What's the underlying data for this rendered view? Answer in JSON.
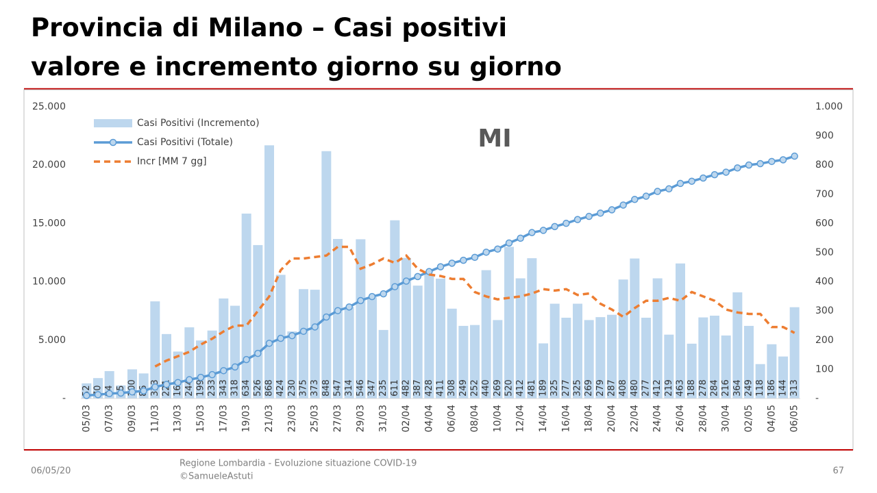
{
  "title": "Provincia di Milano – Casi positivi",
  "subtitle": "valore e incremento giorno su giorno",
  "footer": {
    "date": "06/05/20",
    "source": "Regione Lombardia - Evoluzione situazione COVID-19",
    "author": "©SamueleAstuti",
    "page": "67"
  },
  "chart_data": {
    "type": "combo",
    "annotation": "MI",
    "categories": [
      "05/03",
      null,
      "07/03",
      null,
      "09/03",
      null,
      "11/03",
      null,
      "13/03",
      null,
      "15/03",
      null,
      "17/03",
      null,
      "19/03",
      null,
      "21/03",
      null,
      "23/03",
      null,
      "25/03",
      null,
      "27/03",
      null,
      "29/03",
      null,
      "31/03",
      null,
      "02/04",
      null,
      "04/04",
      null,
      "06/04",
      null,
      "08/04",
      null,
      "10/04",
      null,
      "12/04",
      null,
      "14/04",
      null,
      "16/04",
      null,
      "18/04",
      null,
      "20/04",
      null,
      "22/04",
      null,
      "24/04",
      null,
      "26/04",
      null,
      "28/04",
      null,
      "30/04",
      null,
      "02/05",
      null,
      "04/05",
      null,
      "06/05"
    ],
    "series": [
      {
        "name": "Casi Positivi (Incremento)",
        "type": "bar",
        "axis": "y2",
        "color": "#bdd7ee",
        "values": [
          52,
          70,
          94,
          45,
          100,
          86,
          333,
          221,
          161,
          244,
          199,
          233,
          343,
          318,
          634,
          526,
          868,
          424,
          230,
          375,
          373,
          848,
          547,
          314,
          546,
          347,
          235,
          611,
          482,
          387,
          428,
          411,
          308,
          249,
          252,
          440,
          269,
          520,
          412,
          481,
          189,
          325,
          277,
          325,
          269,
          279,
          287,
          408,
          480,
          277,
          412,
          219,
          463,
          188,
          278,
          284,
          216,
          364,
          249,
          118,
          186,
          144,
          313
        ]
      },
      {
        "name": "Casi Positivi (Totale)",
        "type": "line",
        "axis": "y",
        "color": "#5b9bd5",
        "marker": true,
        "values": [
          258,
          328,
          422,
          467,
          567,
          653,
          986,
          1207,
          1368,
          1612,
          1811,
          2044,
          2387,
          2705,
          3339,
          3865,
          4733,
          5157,
          5387,
          5762,
          6135,
          6983,
          7530,
          7844,
          8390,
          8737,
          8972,
          9583,
          10065,
          10452,
          10880,
          11291,
          11599,
          11848,
          12100,
          12540,
          12809,
          13329,
          13741,
          14222,
          14411,
          14736,
          15013,
          15338,
          15607,
          15886,
          16173,
          16581,
          17061,
          17338,
          17750,
          17969,
          18432,
          18620,
          18898,
          19182,
          19398,
          19762,
          20011,
          20129,
          20315,
          20459,
          20772
        ]
      },
      {
        "name": "Incr [MM 7 gg]",
        "type": "line",
        "axis": "y2",
        "color": "#ed7d31",
        "dashed": true,
        "values": [
          null,
          null,
          null,
          null,
          null,
          null,
          110,
          130,
          145,
          160,
          185,
          205,
          230,
          250,
          250,
          300,
          350,
          440,
          480,
          480,
          485,
          490,
          520,
          520,
          445,
          460,
          480,
          465,
          490,
          445,
          425,
          420,
          410,
          410,
          365,
          350,
          340,
          345,
          350,
          360,
          375,
          370,
          375,
          355,
          360,
          325,
          305,
          280,
          310,
          335,
          335,
          345,
          335,
          365,
          350,
          335,
          305,
          295,
          290,
          290,
          245,
          245,
          225
        ]
      }
    ],
    "ylim": [
      0,
      25000
    ],
    "yticks": [
      {
        "value": 0,
        "label": "-"
      },
      {
        "value": 5000,
        "label": "5.000"
      },
      {
        "value": 10000,
        "label": "10.000"
      },
      {
        "value": 15000,
        "label": "15.000"
      },
      {
        "value": 20000,
        "label": "20.000"
      },
      {
        "value": 25000,
        "label": "25.000"
      }
    ],
    "y2lim": [
      0,
      1000
    ],
    "y2ticks": [
      {
        "value": 0,
        "label": "-"
      },
      100,
      200,
      300,
      400,
      500,
      600,
      700,
      800,
      900,
      {
        "value": 1000,
        "label": "1.000"
      }
    ],
    "grid": false,
    "legend": "top-left"
  }
}
